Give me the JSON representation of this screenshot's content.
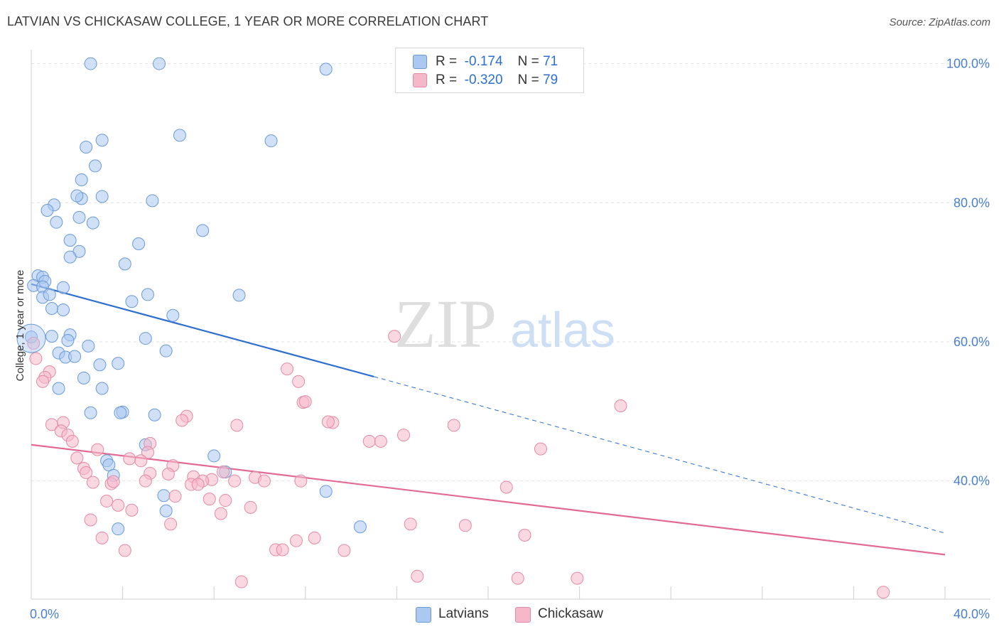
{
  "header": {
    "title": "LATVIAN VS CHICKASAW COLLEGE, 1 YEAR OR MORE CORRELATION CHART",
    "source": "Source: ZipAtlas.com"
  },
  "watermark": {
    "zip": "ZIP",
    "atlas": "atlas"
  },
  "legend": {
    "rows": [
      {
        "r_label": "R =",
        "r_value": "-0.174",
        "n_label": "N =",
        "n_value": "71",
        "color": "#aac8f0"
      },
      {
        "r_label": "R =",
        "r_value": "-0.320",
        "n_label": "N =",
        "n_value": "79",
        "color": "#f5b8cb"
      }
    ]
  },
  "bottom_legend": {
    "items": [
      {
        "label": "Latvians",
        "color": "#aac8f0"
      },
      {
        "label": "Chickasaw",
        "color": "#f5b8cb"
      }
    ]
  },
  "chart_data": {
    "type": "scatter",
    "title": "LATVIAN VS CHICKASAW COLLEGE, 1 YEAR OR MORE CORRELATION CHART",
    "ylabel": "College, 1 year or more",
    "xlabel": "",
    "xlim": [
      0,
      40
    ],
    "ylim": [
      23,
      102
    ],
    "x_tick_labels": [
      "0.0%",
      "40.0%"
    ],
    "y_ticks": [
      40,
      60,
      80,
      100
    ],
    "y_tick_labels": [
      "40.0%",
      "60.0%",
      "80.0%",
      "100.0%"
    ],
    "grid": true,
    "legend_position": "top-center",
    "series": [
      {
        "name": "Latvians",
        "color": "#aac8f0",
        "stroke": "#6a9ad8",
        "line_color": "#2d6fd1",
        "trend": {
          "x0": 0,
          "y0": 68.3,
          "x1": 15.0,
          "y1": 55.0,
          "x_ext": 40.0,
          "y_ext": 32.5
        },
        "points": [
          [
            2.6,
            100
          ],
          [
            5.6,
            100
          ],
          [
            12.9,
            99.2
          ],
          [
            3.1,
            89
          ],
          [
            2.4,
            88
          ],
          [
            6.5,
            89.7
          ],
          [
            10.5,
            88.9
          ],
          [
            2.8,
            85.3
          ],
          [
            2.2,
            83.3
          ],
          [
            2.2,
            80.6
          ],
          [
            2.0,
            81
          ],
          [
            1.0,
            79.7
          ],
          [
            3.1,
            80.9
          ],
          [
            5.3,
            80.3
          ],
          [
            0.7,
            78.9
          ],
          [
            2.1,
            77.9
          ],
          [
            1.1,
            77.2
          ],
          [
            2.7,
            77.1
          ],
          [
            7.5,
            76
          ],
          [
            1.7,
            74.6
          ],
          [
            4.7,
            74.1
          ],
          [
            2.1,
            73
          ],
          [
            1.7,
            72.2
          ],
          [
            4.1,
            71.2
          ],
          [
            0.3,
            69.5
          ],
          [
            0.5,
            69.3
          ],
          [
            0.6,
            68.7
          ],
          [
            0.1,
            68.1
          ],
          [
            0.5,
            67.9
          ],
          [
            1.4,
            67.8
          ],
          [
            0.5,
            66.4
          ],
          [
            0.8,
            66.8
          ],
          [
            5.1,
            66.8
          ],
          [
            9.1,
            66.7
          ],
          [
            4.4,
            65.8
          ],
          [
            0.9,
            64.8
          ],
          [
            1.4,
            64.6
          ],
          [
            6.2,
            63.8
          ],
          [
            0.0,
            60.7
          ],
          [
            0.9,
            60.8
          ],
          [
            1.7,
            61
          ],
          [
            5.0,
            60.5
          ],
          [
            1.6,
            60.2
          ],
          [
            2.5,
            59.4
          ],
          [
            5.9,
            58.7
          ],
          [
            1.2,
            58.4
          ],
          [
            1.5,
            57.8
          ],
          [
            1.9,
            57.9
          ],
          [
            3.0,
            56.7
          ],
          [
            3.8,
            56.9
          ],
          [
            2.3,
            54.8
          ],
          [
            1.2,
            53.3
          ],
          [
            3.1,
            53.3
          ],
          [
            2.6,
            49.8
          ],
          [
            4.0,
            49.9
          ],
          [
            3.9,
            49.8
          ],
          [
            5.4,
            49.5
          ],
          [
            5.0,
            45.2
          ],
          [
            8.0,
            43.6
          ],
          [
            3.3,
            42.9
          ],
          [
            3.4,
            42.3
          ],
          [
            8.5,
            41.3
          ],
          [
            3.6,
            40.8
          ],
          [
            12.9,
            38.5
          ],
          [
            5.8,
            37.9
          ],
          [
            5.9,
            35.7
          ],
          [
            14.4,
            33.4
          ],
          [
            3.8,
            33.1
          ]
        ]
      },
      {
        "name": "Chickasaw",
        "color": "#f5b8cb",
        "stroke": "#e38aa6",
        "line_color": "#e36a94",
        "trend": {
          "x0": 0,
          "y0": 45.2,
          "x1": 40.0,
          "y1": 29.4
        },
        "points": [
          [
            0.1,
            59.8
          ],
          [
            0.2,
            57.6
          ],
          [
            0.8,
            55.7
          ],
          [
            0.6,
            54.9
          ],
          [
            0.5,
            54.3
          ],
          [
            15.9,
            60.8
          ],
          [
            11.2,
            56.1
          ],
          [
            11.7,
            54.3
          ],
          [
            11.9,
            51.3
          ],
          [
            12.0,
            51.4
          ],
          [
            25.8,
            50.8
          ],
          [
            6.8,
            49.3
          ],
          [
            6.6,
            48.7
          ],
          [
            13.2,
            48.4
          ],
          [
            13.0,
            48.5
          ],
          [
            1.4,
            48.4
          ],
          [
            0.9,
            48.1
          ],
          [
            9.0,
            48
          ],
          [
            18.5,
            48
          ],
          [
            1.3,
            47.2
          ],
          [
            1.6,
            46.6
          ],
          [
            16.3,
            46.6
          ],
          [
            14.8,
            45.7
          ],
          [
            15.3,
            45.7
          ],
          [
            1.8,
            45.7
          ],
          [
            5.2,
            45.4
          ],
          [
            22.3,
            44.6
          ],
          [
            2.9,
            44.5
          ],
          [
            5.1,
            44.1
          ],
          [
            4.3,
            43.2
          ],
          [
            2.0,
            43.3
          ],
          [
            4.8,
            42.9
          ],
          [
            6.2,
            42.2
          ],
          [
            2.3,
            41.8
          ],
          [
            2.4,
            41.2
          ],
          [
            5.2,
            41.1
          ],
          [
            6.0,
            41
          ],
          [
            8.4,
            41.3
          ],
          [
            7.1,
            40.6
          ],
          [
            7.9,
            40.2
          ],
          [
            9.8,
            40.5
          ],
          [
            7.5,
            40
          ],
          [
            8.9,
            40
          ],
          [
            10.2,
            40
          ],
          [
            11.8,
            40
          ],
          [
            5.0,
            40
          ],
          [
            2.7,
            39.8
          ],
          [
            3.5,
            39.6
          ],
          [
            3.6,
            39.9
          ],
          [
            7.0,
            39.5
          ],
          [
            7.3,
            39.5
          ],
          [
            20.8,
            39.1
          ],
          [
            6.3,
            37.8
          ],
          [
            7.8,
            37.4
          ],
          [
            8.5,
            37.2
          ],
          [
            3.3,
            37.1
          ],
          [
            3.8,
            36.5
          ],
          [
            9.6,
            36.2
          ],
          [
            4.4,
            35.8
          ],
          [
            8.3,
            35.3
          ],
          [
            2.6,
            34.4
          ],
          [
            6.1,
            33.8
          ],
          [
            16.6,
            33.8
          ],
          [
            19.0,
            33.6
          ],
          [
            21.6,
            32.2
          ],
          [
            3.1,
            31.8
          ],
          [
            11.6,
            31.4
          ],
          [
            12.4,
            31.8
          ],
          [
            10.7,
            30.1
          ],
          [
            11.0,
            30.1
          ],
          [
            13.7,
            30
          ],
          [
            4.1,
            30
          ],
          [
            16.9,
            26.3
          ],
          [
            21.3,
            26
          ],
          [
            23.9,
            26
          ],
          [
            9.2,
            25.5
          ],
          [
            37.3,
            24
          ]
        ]
      }
    ]
  }
}
